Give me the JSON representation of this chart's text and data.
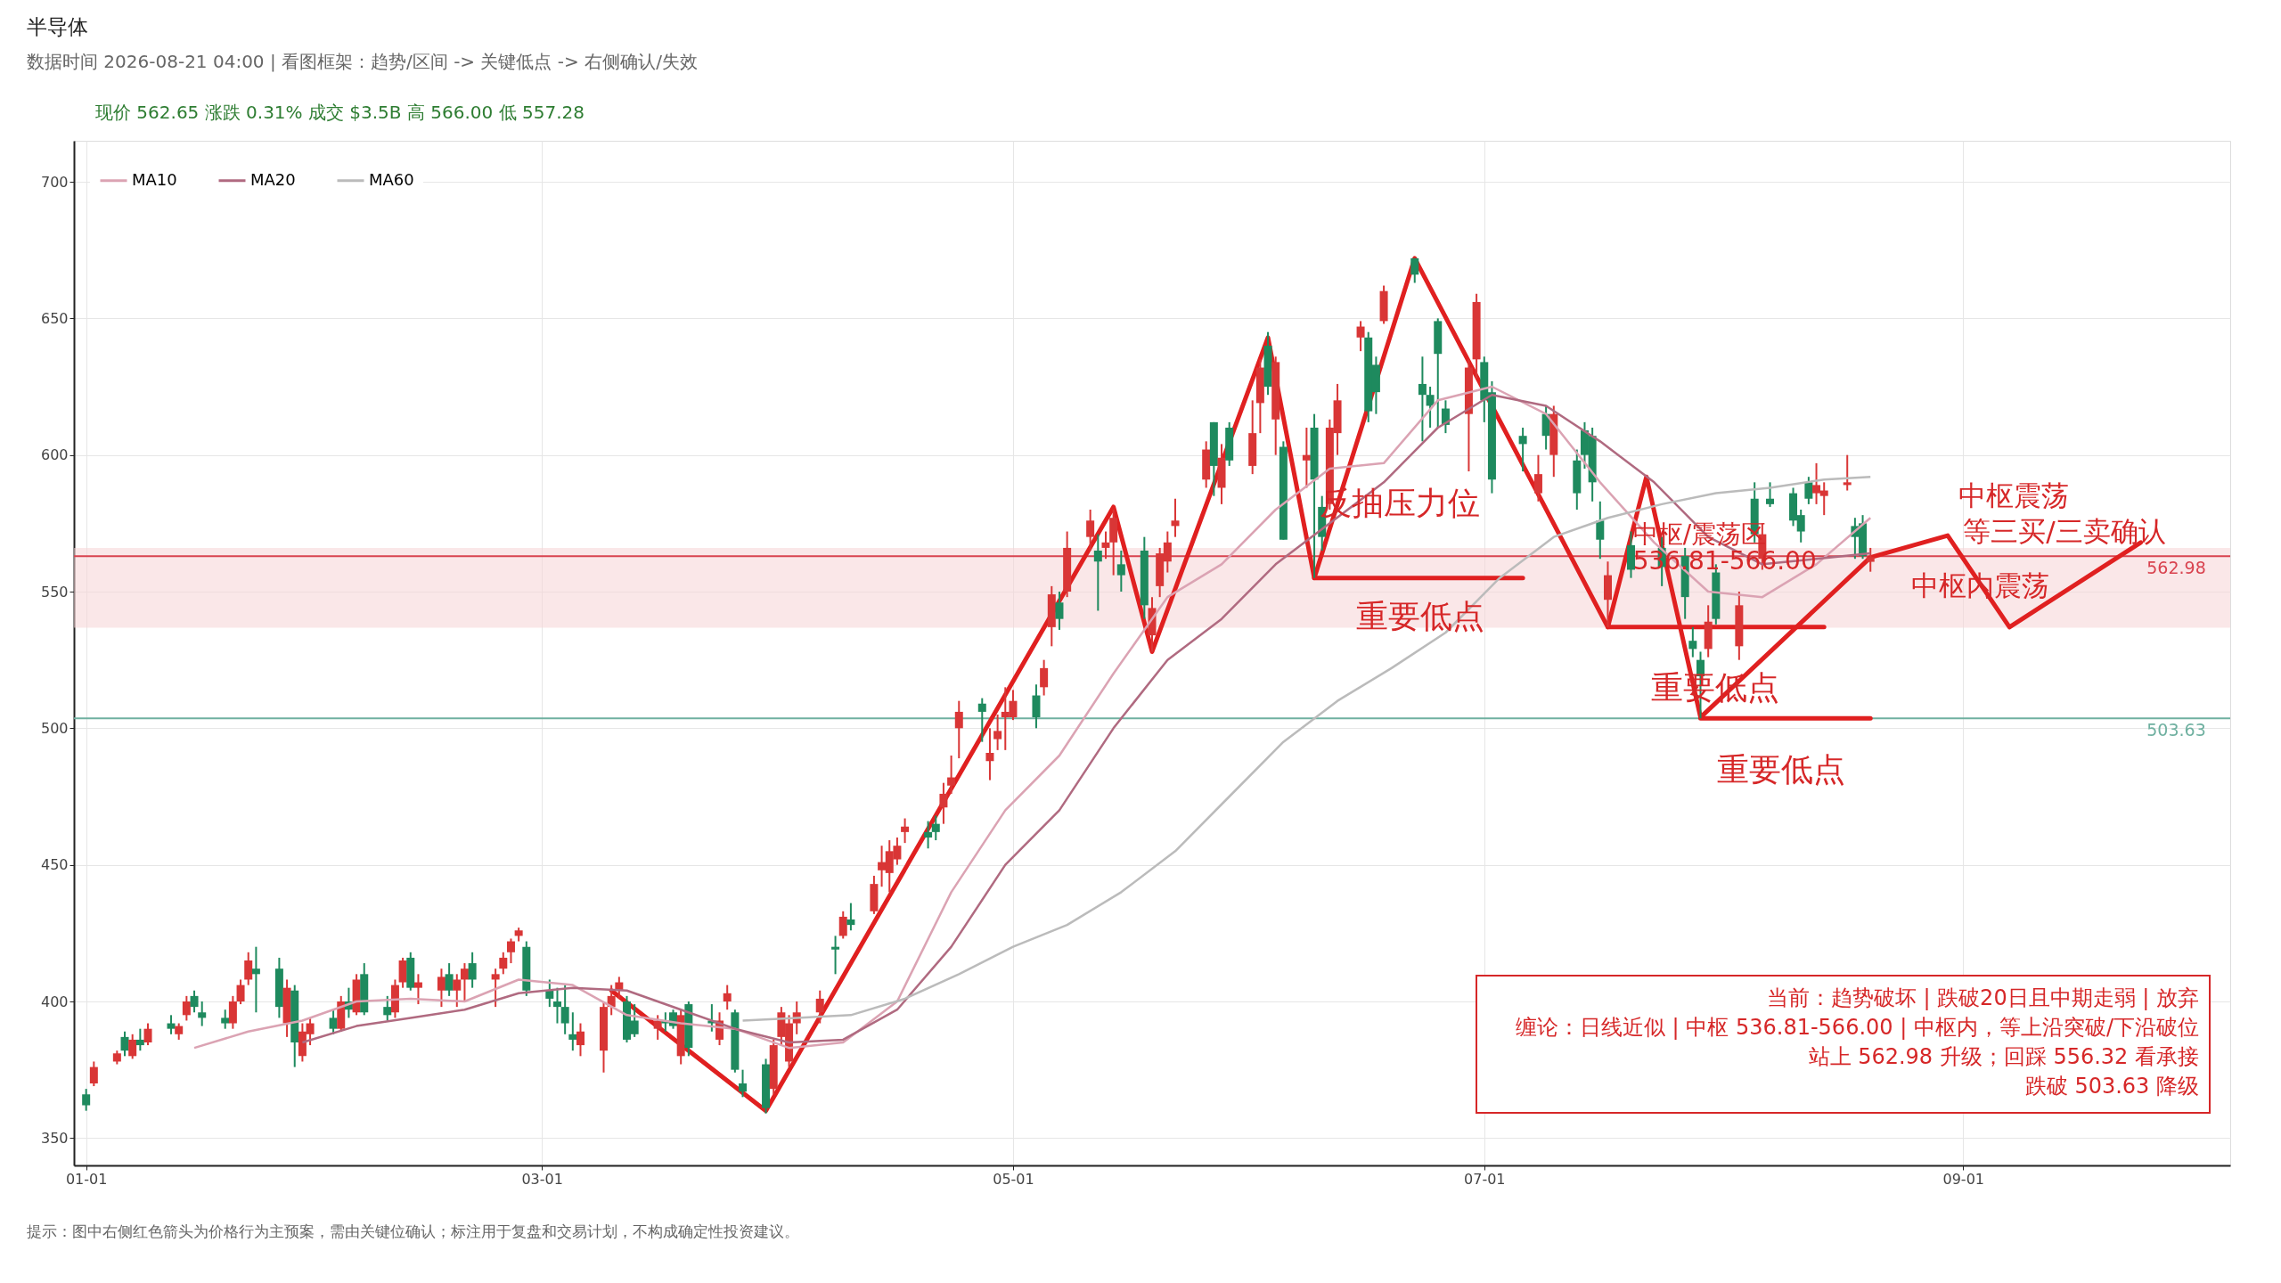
{
  "chart_data": {
    "type": "candlestick",
    "title": "半导体",
    "subtitle": "数据时间 2026-08-21 04:00  |  看图框架：趋势/区间 -> 关键低点 -> 右侧确认/失效",
    "colors": [
      "#1e8a5e",
      "#d93636",
      "#d93636",
      "#1e8a5e",
      "#d93636",
      "#1e8a5e",
      "#d93636",
      "#1e8a5e",
      "#d93636",
      "#d93636",
      "#1e8a5e",
      "#1e8a5e",
      "#1e8a5e",
      "#d93636",
      "#d93636",
      "#d93636",
      "#1e8a5e",
      "#1e8a5e",
      "#d93636",
      "#1e8a5e",
      "#d93636",
      "#d93636",
      "#1e8a5e",
      "#d93636",
      "#1e8a5e",
      "#d93636",
      "#1e8a5e",
      "#1e8a5e",
      "#d93636",
      "#d93636",
      "#1e8a5e",
      "#d93636",
      "#d93636",
      "#1e8a5e",
      "#d93636",
      "#d93636",
      "#1e8a5e",
      "#d93636",
      "#d93636",
      "#d93636",
      "#d93636",
      "#1e8a5e",
      "#1e8a5e",
      "#1e8a5e",
      "#1e8a5e",
      "#1e8a5e",
      "#d93636",
      "#d93636",
      "#d93636",
      "#d93636",
      "#1e8a5e",
      "#1e8a5e",
      "#d93636",
      "#1e8a5e",
      "#1e8a5e",
      "#d93636",
      "#1e8a5e",
      "#1e8a5e",
      "#d93636",
      "#d93636",
      "#1e8a5e",
      "#1e8a5e",
      "#1e8a5e",
      "#d93636",
      "#d93636",
      "#d93636",
      "#d93636",
      "#d93636",
      "#1e8a5e",
      "#d93636",
      "#1e8a5e",
      "#d93636",
      "#d93636",
      "#d93636",
      "#d93636",
      "#d93636",
      "#1e8a5e",
      "#1e8a5e",
      "#d93636",
      "#d93636",
      "#d93636",
      "#1e8a5e",
      "#d93636",
      "#d93636",
      "#d93636",
      "#d93636",
      "#1e8a5e",
      "#d93636",
      "#d93636",
      "#1e8a5e",
      "#d93636",
      "#d93636",
      "#1e8a5e",
      "#d93636",
      "#d93636",
      "#1e8a5e",
      "#1e8a5e",
      "#d93636",
      "#d93636",
      "#d93636",
      "#d93636",
      "#d93636",
      "#1e8a5e",
      "#d93636",
      "#1e8a5e",
      "#d93636",
      "#d93636",
      "#1e8a5e",
      "#d93636",
      "#1e8a5e",
      "#d93636",
      "#1e8a5e",
      "#1e8a5e",
      "#d93636",
      "#d93636",
      "#d93636",
      "#1e8a5e",
      "#1e8a5e",
      "#d93636",
      "#1e8a5e",
      "#1e8a5e",
      "#1e8a5e",
      "#1e8a5e",
      "#1e8a5e",
      "#d93636",
      "#d93636",
      "#1e8a5e",
      "#1e8a5e",
      "#1e8a5e",
      "#d93636",
      "#1e8a5e",
      "#d93636",
      "#1e8a5e",
      "#1e8a5e",
      "#1e8a5e",
      "#1e8a5e",
      "#d93636",
      "#1e8a5e",
      "#1e8a5e",
      "#1e8a5e",
      "#1e8a5e",
      "#1e8a5e",
      "#d93636",
      "#1e8a5e",
      "#d93636",
      "#1e8a5e",
      "#d93636",
      "#1e8a5e",
      "#1e8a5e",
      "#1e8a5e",
      "#1e8a5e",
      "#d93636",
      "#d93636",
      "#d93636",
      "#1e8a5e",
      "#1e8a5e",
      "#d93636"
    ],
    "x": [
      "2026-01-01",
      "2026-01-02",
      "2026-01-05",
      "2026-01-06",
      "2026-01-07",
      "2026-01-08",
      "2026-01-09",
      "2026-01-12",
      "2026-01-13",
      "2026-01-14",
      "2026-01-15",
      "2026-01-16",
      "2026-01-19",
      "2026-01-20",
      "2026-01-21",
      "2026-01-22",
      "2026-01-23",
      "2026-01-26",
      "2026-01-27",
      "2026-01-28",
      "2026-01-29",
      "2026-01-30",
      "2026-02-02",
      "2026-02-03",
      "2026-02-04",
      "2026-02-05",
      "2026-02-06",
      "2026-02-09",
      "2026-02-10",
      "2026-02-11",
      "2026-02-12",
      "2026-02-13",
      "2026-02-16",
      "2026-02-17",
      "2026-02-18",
      "2026-02-19",
      "2026-02-20",
      "2026-02-23",
      "2026-02-24",
      "2026-02-25",
      "2026-02-26",
      "2026-02-27",
      "2026-03-02",
      "2026-03-03",
      "2026-03-04",
      "2026-03-05",
      "2026-03-06",
      "2026-03-09",
      "2026-03-10",
      "2026-03-11",
      "2026-03-12",
      "2026-03-13",
      "2026-03-16",
      "2026-03-17",
      "2026-03-18",
      "2026-03-19",
      "2026-03-20",
      "2026-03-23",
      "2026-03-24",
      "2026-03-25",
      "2026-03-26",
      "2026-03-27",
      "2026-03-30",
      "2026-03-31",
      "2026-04-01",
      "2026-04-02",
      "2026-04-03",
      "2026-04-06",
      "2026-04-08",
      "2026-04-09",
      "2026-04-10",
      "2026-04-13",
      "2026-04-14",
      "2026-04-15",
      "2026-04-16",
      "2026-04-17",
      "2026-04-20",
      "2026-04-21",
      "2026-04-22",
      "2026-04-23",
      "2026-04-24",
      "2026-04-27",
      "2026-04-28",
      "2026-04-29",
      "2026-04-30",
      "2026-05-01",
      "2026-05-04",
      "2026-05-05",
      "2026-05-06",
      "2026-05-07",
      "2026-05-08",
      "2026-05-11",
      "2026-05-12",
      "2026-05-13",
      "2026-05-14",
      "2026-05-15",
      "2026-05-18",
      "2026-05-19",
      "2026-05-20",
      "2026-05-21",
      "2026-05-22",
      "2026-05-26",
      "2026-05-27",
      "2026-05-28",
      "2026-05-29",
      "2026-06-01",
      "2026-06-02",
      "2026-06-03",
      "2026-06-04",
      "2026-06-05",
      "2026-06-08",
      "2026-06-09",
      "2026-06-10",
      "2026-06-11",
      "2026-06-12",
      "2026-06-15",
      "2026-06-16",
      "2026-06-17",
      "2026-06-18",
      "2026-06-22",
      "2026-06-23",
      "2026-06-24",
      "2026-06-25",
      "2026-06-26",
      "2026-06-29",
      "2026-06-30",
      "2026-07-01",
      "2026-07-02",
      "2026-07-06",
      "2026-07-08",
      "2026-07-09",
      "2026-07-10",
      "2026-07-13",
      "2026-07-14",
      "2026-07-15",
      "2026-07-16",
      "2026-07-17",
      "2026-07-20",
      "2026-07-24",
      "2026-07-27",
      "2026-07-28",
      "2026-07-29",
      "2026-07-30",
      "2026-07-31",
      "2026-08-03",
      "2026-08-05",
      "2026-08-06",
      "2026-08-07",
      "2026-08-10",
      "2026-08-11",
      "2026-08-12",
      "2026-08-13",
      "2026-08-14",
      "2026-08-17",
      "2026-08-18",
      "2026-08-19",
      "2026-08-20"
    ],
    "ohlc": [
      [
        366,
        368,
        360,
        362
      ],
      [
        370,
        378,
        369,
        376
      ],
      [
        378,
        382,
        377,
        381
      ],
      [
        387,
        389,
        380,
        382
      ],
      [
        380,
        388,
        379,
        386
      ],
      [
        386,
        390,
        382,
        384
      ],
      [
        385,
        392,
        384,
        390
      ],
      [
        392,
        395,
        388,
        390
      ],
      [
        388,
        392,
        386,
        391
      ],
      [
        395,
        402,
        393,
        400
      ],
      [
        402,
        404,
        396,
        398
      ],
      [
        396,
        400,
        391,
        394
      ],
      [
        394,
        397,
        390,
        392
      ],
      [
        392,
        402,
        390,
        400
      ],
      [
        400,
        408,
        399,
        406
      ],
      [
        408,
        418,
        406,
        415
      ],
      [
        412,
        420,
        396,
        410
      ],
      [
        412,
        416,
        394,
        398
      ],
      [
        392,
        408,
        387,
        405
      ],
      [
        404,
        406,
        376,
        385
      ],
      [
        380,
        392,
        378,
        389
      ],
      [
        388,
        394,
        384,
        392
      ],
      [
        394,
        397,
        388,
        390
      ],
      [
        390,
        402,
        389,
        400
      ],
      [
        400,
        405,
        394,
        397
      ],
      [
        396,
        410,
        395,
        408
      ],
      [
        410,
        414,
        395,
        396
      ],
      [
        398,
        402,
        393,
        395
      ],
      [
        396,
        408,
        394,
        406
      ],
      [
        407,
        416,
        405,
        415
      ],
      [
        416,
        418,
        404,
        405
      ],
      [
        405,
        410,
        399,
        407
      ],
      [
        404,
        412,
        398,
        409
      ],
      [
        410,
        414,
        402,
        404
      ],
      [
        404,
        410,
        398,
        408
      ],
      [
        408,
        414,
        400,
        412
      ],
      [
        414,
        418,
        405,
        408
      ],
      [
        408,
        412,
        398,
        410
      ],
      [
        412,
        418,
        410,
        416
      ],
      [
        418,
        423,
        414,
        422
      ],
      [
        424,
        427,
        422,
        426
      ],
      [
        420,
        422,
        402,
        404
      ],
      [
        404,
        408,
        398,
        401
      ],
      [
        400,
        405,
        392,
        398
      ],
      [
        398,
        406,
        388,
        392
      ],
      [
        388,
        396,
        382,
        386
      ],
      [
        384,
        392,
        380,
        389
      ],
      [
        382,
        400,
        374,
        398
      ],
      [
        398,
        406,
        395,
        402
      ],
      [
        404,
        409,
        401,
        407
      ],
      [
        400,
        402,
        385,
        386
      ],
      [
        393,
        399,
        387,
        388
      ],
      [
        390,
        395,
        386,
        393
      ],
      [
        393,
        396,
        389,
        392
      ],
      [
        396,
        397,
        390,
        391
      ],
      [
        380,
        397,
        377,
        395
      ],
      [
        399,
        400,
        380,
        383
      ],
      [
        393,
        399,
        389,
        392
      ],
      [
        386,
        396,
        384,
        393
      ],
      [
        400,
        406,
        397,
        403
      ],
      [
        396,
        397,
        374,
        375
      ],
      [
        370,
        375,
        365,
        367
      ],
      [
        377,
        379,
        359,
        361
      ],
      [
        368,
        386,
        366,
        384
      ],
      [
        387,
        398,
        384,
        396
      ],
      [
        378,
        395,
        376,
        392
      ],
      [
        392,
        400,
        388,
        396
      ],
      [
        396,
        404,
        392,
        401
      ],
      [
        420,
        424,
        410,
        419
      ],
      [
        424,
        433,
        423,
        431
      ],
      [
        430,
        436,
        426,
        428
      ],
      [
        433,
        446,
        432,
        443
      ],
      [
        448,
        457,
        442,
        451
      ],
      [
        447,
        459,
        440,
        455
      ],
      [
        452,
        460,
        450,
        457
      ],
      [
        462,
        467,
        458,
        464
      ],
      [
        462,
        466,
        456,
        460
      ],
      [
        465,
        468,
        459,
        462
      ],
      [
        471,
        480,
        465,
        476
      ],
      [
        479,
        490,
        476,
        482
      ],
      [
        500,
        510,
        489,
        506
      ],
      [
        509,
        511,
        495,
        506
      ],
      [
        488,
        500,
        481,
        491
      ],
      [
        496,
        505,
        492,
        499
      ],
      [
        504,
        515,
        492,
        506
      ],
      [
        504,
        514,
        503,
        510
      ],
      [
        512,
        516,
        500,
        504
      ],
      [
        515,
        525,
        512,
        522
      ],
      [
        537,
        552,
        530,
        549
      ],
      [
        546,
        550,
        536,
        540
      ],
      [
        550,
        572,
        548,
        566
      ],
      [
        570,
        580,
        565,
        576
      ],
      [
        565,
        571,
        543,
        561
      ],
      [
        566,
        572,
        562,
        568
      ],
      [
        568,
        580,
        556,
        577
      ],
      [
        560,
        565,
        550,
        556
      ],
      [
        565,
        570,
        540,
        545
      ],
      [
        534,
        548,
        528,
        544
      ],
      [
        552,
        566,
        548,
        564
      ],
      [
        561,
        572,
        557,
        568
      ],
      [
        574,
        584,
        570,
        576
      ],
      [
        591,
        605,
        588,
        602
      ],
      [
        612,
        612,
        585,
        596
      ],
      [
        588,
        604,
        582,
        599
      ],
      [
        610,
        612,
        596,
        598
      ],
      [
        596,
        620,
        593,
        608
      ],
      [
        619,
        635,
        608,
        632
      ],
      [
        640,
        645,
        622,
        625
      ],
      [
        613,
        636,
        600,
        634
      ],
      [
        603,
        605,
        569,
        569
      ],
      [
        598,
        610,
        588,
        600
      ],
      [
        610,
        615,
        555,
        591
      ],
      [
        581,
        585,
        565,
        570
      ],
      [
        582,
        613,
        580,
        610
      ],
      [
        608,
        626,
        600,
        620
      ],
      [
        643,
        649,
        638,
        647
      ],
      [
        643,
        645,
        612,
        616
      ],
      [
        633,
        636,
        615,
        623
      ],
      [
        649,
        662,
        648,
        660
      ],
      [
        672,
        672,
        663,
        666
      ],
      [
        626,
        636,
        605,
        622
      ],
      [
        622,
        625,
        610,
        618
      ],
      [
        649,
        650,
        610,
        637
      ],
      [
        617,
        620,
        608,
        611
      ],
      [
        615,
        635,
        594,
        632
      ],
      [
        635,
        659,
        628,
        656
      ],
      [
        634,
        636,
        612,
        620
      ],
      [
        623,
        627,
        586,
        591
      ],
      [
        607,
        610,
        594,
        604
      ],
      [
        586,
        600,
        583,
        593
      ],
      [
        615,
        618,
        602,
        607
      ],
      [
        600,
        618,
        592,
        615
      ],
      [
        598,
        602,
        580,
        586
      ],
      [
        609,
        612,
        595,
        600
      ],
      [
        607,
        610,
        583,
        590
      ],
      [
        576,
        583,
        562,
        569
      ],
      [
        547,
        561,
        537,
        556
      ],
      [
        567,
        572,
        555,
        558
      ],
      [
        566,
        570,
        552,
        559
      ],
      [
        563,
        566,
        540,
        548
      ],
      [
        532,
        537,
        526,
        529
      ],
      [
        525,
        528,
        503.63,
        519
      ],
      [
        529,
        545,
        526,
        539
      ],
      [
        557,
        560,
        538,
        540
      ],
      [
        530,
        550,
        525,
        545
      ],
      [
        584,
        590,
        568,
        571
      ],
      [
        562,
        575,
        558,
        571
      ],
      [
        584,
        590,
        581,
        582
      ],
      [
        586,
        588,
        574,
        576
      ],
      [
        578,
        580,
        568,
        572
      ],
      [
        590,
        592,
        582,
        584
      ],
      [
        586,
        597,
        582,
        589
      ],
      [
        585,
        590,
        578,
        587
      ],
      [
        589,
        600,
        587,
        590
      ],
      [
        574,
        577,
        562,
        570
      ],
      [
        575,
        578,
        562,
        563
      ],
      [
        560.9,
        566,
        557.28,
        562.65
      ]
    ],
    "series": [
      {
        "name": "MA10",
        "type": "line",
        "color": "#dba3b3",
        "x": [
          "2026-01-15",
          "2026-01-22",
          "2026-01-29",
          "2026-02-05",
          "2026-02-12",
          "2026-02-19",
          "2026-02-26",
          "2026-03-05",
          "2026-03-12",
          "2026-03-19",
          "2026-03-26",
          "2026-04-02",
          "2026-04-09",
          "2026-04-16",
          "2026-04-23",
          "2026-04-30",
          "2026-05-07",
          "2026-05-14",
          "2026-05-21",
          "2026-05-28",
          "2026-06-04",
          "2026-06-11",
          "2026-06-18",
          "2026-06-25",
          "2026-07-02",
          "2026-07-09",
          "2026-07-16",
          "2026-07-23",
          "2026-07-30",
          "2026-08-06",
          "2026-08-13",
          "2026-08-20"
        ],
        "values": [
          383,
          389,
          393,
          400,
          401,
          400,
          408,
          406,
          395,
          392,
          390,
          383,
          385,
          400,
          440,
          470,
          490,
          520,
          548,
          560,
          580,
          595,
          597,
          620,
          625,
          615,
          590,
          568,
          550,
          548,
          560,
          577
        ]
      },
      {
        "name": "MA20",
        "type": "line",
        "color": "#b06a80",
        "x": [
          "2026-01-29",
          "2026-02-05",
          "2026-02-12",
          "2026-02-19",
          "2026-02-26",
          "2026-03-05",
          "2026-03-12",
          "2026-03-19",
          "2026-03-26",
          "2026-04-02",
          "2026-04-09",
          "2026-04-16",
          "2026-04-23",
          "2026-04-30",
          "2026-05-07",
          "2026-05-14",
          "2026-05-21",
          "2026-05-28",
          "2026-06-04",
          "2026-06-11",
          "2026-06-18",
          "2026-06-25",
          "2026-07-02",
          "2026-07-09",
          "2026-07-16",
          "2026-07-23",
          "2026-07-30",
          "2026-08-06",
          "2026-08-13",
          "2026-08-20"
        ],
        "values": [
          385,
          391,
          394,
          397,
          403,
          405,
          404,
          397,
          390,
          385,
          386,
          397,
          420,
          450,
          470,
          500,
          525,
          540,
          560,
          575,
          590,
          610,
          622,
          618,
          605,
          590,
          570,
          560,
          562,
          564
        ]
      },
      {
        "name": "MA60",
        "type": "line",
        "color": "#bbbbbb",
        "x": [
          "2026-03-27",
          "2026-04-03",
          "2026-04-10",
          "2026-04-17",
          "2026-04-24",
          "2026-05-01",
          "2026-05-08",
          "2026-05-15",
          "2026-05-22",
          "2026-05-29",
          "2026-06-05",
          "2026-06-12",
          "2026-06-19",
          "2026-06-26",
          "2026-07-03",
          "2026-07-10",
          "2026-07-17",
          "2026-07-24",
          "2026-07-31",
          "2026-08-07",
          "2026-08-14",
          "2026-08-20"
        ],
        "values": [
          393,
          394,
          395,
          401,
          410,
          420,
          428,
          440,
          455,
          475,
          495,
          510,
          522,
          535,
          555,
          570,
          577,
          582,
          586,
          588,
          591,
          592
        ]
      },
      {
        "type": "line",
        "color": "#e02020",
        "x": [
          "2026-03-10",
          "2026-03-30",
          "2026-05-14",
          "2026-05-19",
          "2026-06-03",
          "2026-06-09",
          "2026-06-22",
          "2026-07-17",
          "2026-07-22",
          "2026-07-29",
          "2026-08-20",
          "2026-08-30",
          "2026-09-07",
          "2026-09-24"
        ],
        "values": [
          404,
          360,
          581,
          528,
          643,
          555,
          672,
          537,
          592,
          504,
          562.5,
          570.5,
          537,
          568
        ]
      },
      {
        "type": "line",
        "color": "#e02020",
        "x": [
          "2026-06-09",
          "2026-07-06"
        ],
        "values": [
          555,
          555
        ]
      },
      {
        "type": "line",
        "color": "#e02020",
        "x": [
          "2026-07-17",
          "2026-08-14"
        ],
        "values": [
          537,
          537
        ]
      },
      {
        "type": "line",
        "color": "#e02020",
        "x": [
          "2026-07-29",
          "2026-08-20"
        ],
        "values": [
          503.63,
          503.63
        ]
      }
    ],
    "xlim": [
      "2025-12-31",
      "2026-10-05"
    ],
    "xticks": [
      {
        "value": "2026-01-01",
        "label": "01-01"
      },
      {
        "value": "2026-03-01",
        "label": "03-01"
      },
      {
        "value": "2026-05-01",
        "label": "05-01"
      },
      {
        "value": "2026-07-01",
        "label": "07-01"
      },
      {
        "value": "2026-09-01",
        "label": "09-01"
      }
    ],
    "ylim": [
      340,
      715
    ],
    "yticks": [
      350,
      400,
      450,
      500,
      550,
      600,
      650,
      700
    ],
    "grid": true,
    "legend": "top left",
    "ref_lines": [
      {
        "axis": "y",
        "value": 562.98,
        "label": "562.98",
        "color": "#d9434f"
      },
      {
        "axis": "y",
        "value": 503.63,
        "label": "503.63",
        "color": "#6fb0a0"
      }
    ],
    "bands": [
      {
        "axis": "y",
        "from": 536.81,
        "to": 566.0,
        "label": "中枢/震荡区\n536.81-566.00",
        "color": "#f6d3d5"
      }
    ],
    "annotations": [
      "现价 562.65  涨跌 0.31%  成交 $3.5B  高 566.00  低 557.28",
      "当前：趋势破坏 | 跌破20日且中期走弱 | 放弃",
      "缠论：日线近似 | 中枢 536.81-566.00 | 中枢内，等上沿突破/下沿破位",
      "站上 562.98 升级；回踩 556.32 看承接",
      "跌破 503.63 降级",
      "提示：图中右侧红色箭头为价格行为主预案，需由关键位确认；标注用于复盘和交易计划，不构成确定性投资建议。",
      "反抽压力位",
      "重要低点",
      "重要低点",
      "重要低点",
      "中枢震荡",
      "等三买/三卖确认",
      "中枢内震荡"
    ]
  }
}
